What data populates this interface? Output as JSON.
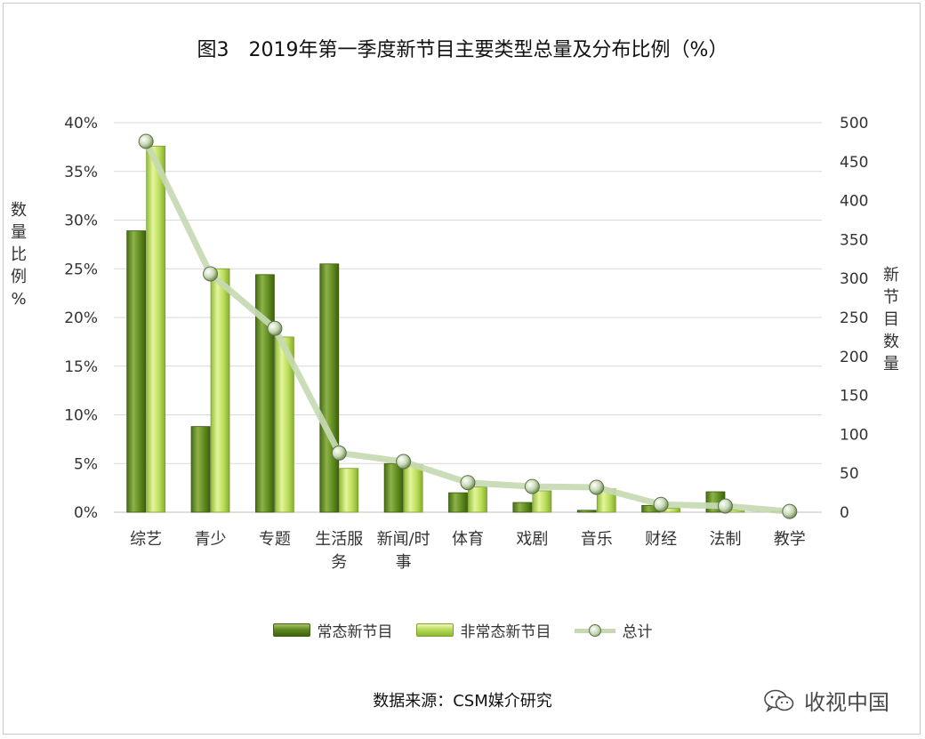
{
  "title": "图3　2019年第一季度新节目主要类型总量及分布比例（%）",
  "source": "数据来源：CSM媒介研究",
  "watermark": {
    "icon": "wechat-icon",
    "text": "收视中国"
  },
  "colors": {
    "regular": "#5f8a1e",
    "nonregular": "#b9dc5a",
    "total_line": "#c7d9b2",
    "grid": "#d9d9d9"
  },
  "chart_data": {
    "type": "bar",
    "categories": [
      "综艺",
      "青少",
      "专题",
      "生活服务",
      "新闻/时事",
      "体育",
      "戏剧",
      "音乐",
      "财经",
      "法制",
      "教学"
    ],
    "category_lines": [
      [
        "综艺"
      ],
      [
        "青少"
      ],
      [
        "专题"
      ],
      [
        "生活服",
        "务"
      ],
      [
        "新闻/时",
        "事"
      ],
      [
        "体育"
      ],
      [
        "戏剧"
      ],
      [
        "音乐"
      ],
      [
        "财经"
      ],
      [
        "法制"
      ],
      [
        "教学"
      ]
    ],
    "series": [
      {
        "name": "常态新节目",
        "type": "bar",
        "axis": "left",
        "values": [
          28.9,
          8.8,
          24.4,
          25.5,
          5.0,
          2.0,
          1.0,
          0.2,
          0.7,
          2.1,
          0.1
        ]
      },
      {
        "name": "非常态新节目",
        "type": "bar",
        "axis": "left",
        "values": [
          37.6,
          25.0,
          18.0,
          4.5,
          4.9,
          2.6,
          2.2,
          2.4,
          0.4,
          0.2,
          0.0
        ]
      },
      {
        "name": "总计",
        "type": "line",
        "axis": "right",
        "values": [
          476,
          306,
          236,
          76,
          65,
          38,
          33,
          32,
          10,
          8,
          1
        ]
      }
    ],
    "ylabel_left": "数量比例%",
    "ylabel_right": "新节目数量",
    "ylim_left": [
      0,
      40
    ],
    "ylim_right": [
      0,
      500
    ],
    "yticks_left": [
      "0%",
      "5%",
      "10%",
      "15%",
      "20%",
      "25%",
      "30%",
      "35%",
      "40%"
    ],
    "yticks_right": [
      "0",
      "50",
      "100",
      "150",
      "200",
      "250",
      "300",
      "350",
      "400",
      "450",
      "500"
    ],
    "legend_position": "bottom",
    "grid": true
  }
}
